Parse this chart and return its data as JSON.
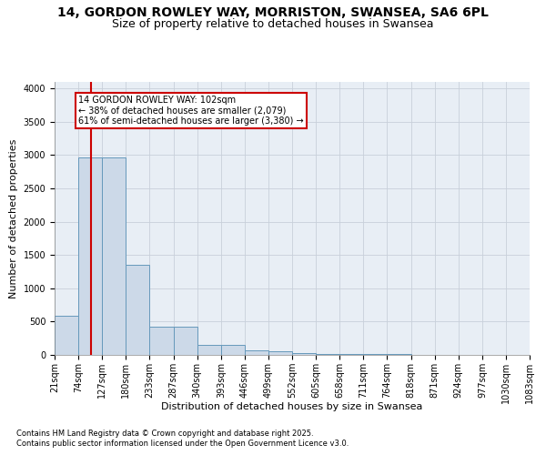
{
  "title1": "14, GORDON ROWLEY WAY, MORRISTON, SWANSEA, SA6 6PL",
  "title2": "Size of property relative to detached houses in Swansea",
  "xlabel": "Distribution of detached houses by size in Swansea",
  "ylabel": "Number of detached properties",
  "bin_edges": [
    21,
    74,
    127,
    180,
    233,
    287,
    340,
    393,
    446,
    499,
    552,
    605,
    658,
    711,
    764,
    818,
    871,
    924,
    977,
    1030,
    1083
  ],
  "bar_heights": [
    590,
    2970,
    2970,
    1350,
    430,
    430,
    150,
    150,
    75,
    50,
    30,
    20,
    15,
    10,
    8,
    5,
    4,
    3,
    2,
    1
  ],
  "bar_facecolor": "#ccd9e8",
  "bar_edgecolor": "#6699bb",
  "grid_color": "#c8d0da",
  "background_color": "#e8eef5",
  "vline_x": 102,
  "vline_color": "#cc0000",
  "annotation_text": "14 GORDON ROWLEY WAY: 102sqm\n← 38% of detached houses are smaller (2,079)\n61% of semi-detached houses are larger (3,380) →",
  "annotation_box_color": "#cc0000",
  "ylim": [
    0,
    4100
  ],
  "yticks": [
    0,
    500,
    1000,
    1500,
    2000,
    2500,
    3000,
    3500,
    4000
  ],
  "footnote1": "Contains HM Land Registry data © Crown copyright and database right 2025.",
  "footnote2": "Contains public sector information licensed under the Open Government Licence v3.0.",
  "title1_fontsize": 10,
  "title2_fontsize": 9,
  "axis_fontsize": 8,
  "tick_fontsize": 7,
  "footnote_fontsize": 6
}
